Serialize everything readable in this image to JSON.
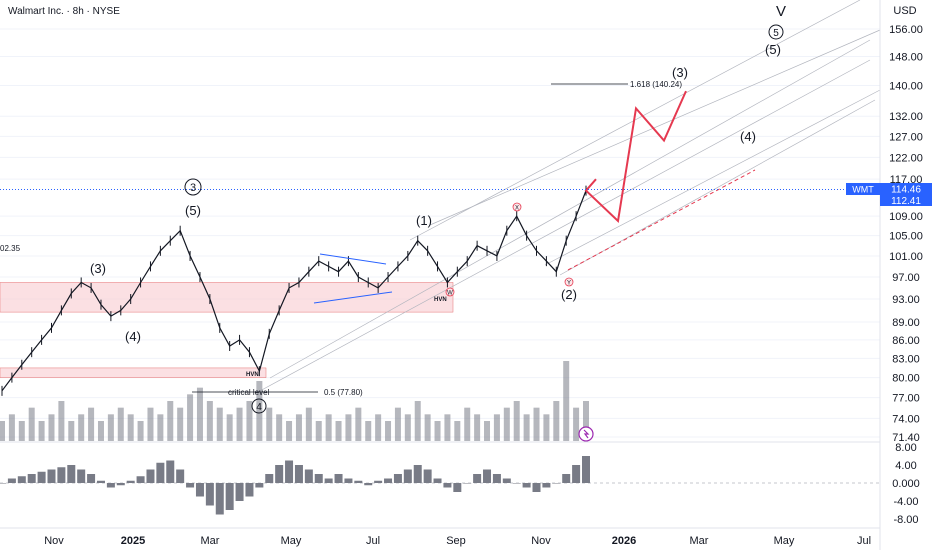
{
  "header": {
    "title": "Walmart Inc. · 8h · NYSE",
    "currency": "USD"
  },
  "colors": {
    "candle": "#131722",
    "volume": "#787b86",
    "zone": "#f7c6cc",
    "zone_border": "#e57373",
    "projection": "#e53950",
    "triangle": "#2962ff",
    "channel": "#b2b5be",
    "price_tag": "#2962ff",
    "last_line": "#2962ff"
  },
  "price_axis": {
    "ticks": [
      "156.00",
      "148.00",
      "140.00",
      "132.00",
      "127.00",
      "122.00",
      "117.00",
      "109.00",
      "105.00",
      "101.00",
      "97.00",
      "93.00",
      "89.00",
      "86.00",
      "83.00",
      "80.00",
      "77.00",
      "74.00",
      "71.40"
    ],
    "symbol_tag": "WMT",
    "last_price": "114.46",
    "prev_price": "112.41"
  },
  "oscillator_axis": {
    "ticks": [
      "8.00",
      "4.00",
      "0.000",
      "-4.00",
      "-8.00"
    ]
  },
  "time_axis": {
    "ticks": [
      "Nov",
      "2025",
      "Mar",
      "May",
      "Jul",
      "Sep",
      "Nov",
      "2026",
      "Mar",
      "May",
      "Jul"
    ]
  },
  "annotations": {
    "wave_3_circle": "3",
    "wave_5_paren": "(5)",
    "wave_3_paren_left": "(3)",
    "wave_4_paren_left": "(4)",
    "wave_4_circle": "4",
    "wave_1_paren": "(1)",
    "wave_2_paren": "(2)",
    "wave_3_proj": "(3)",
    "wave_4_proj": "(4)",
    "wave_5_circle_top": "5",
    "wave_5_paren_top": "(5)",
    "wave_v": "V",
    "fib_label": "1.618 (140.24)",
    "critical_level": "critical level",
    "fib_half": "0.5 (77.80)",
    "hvn_1": "HVN",
    "hvn_2": "HVN",
    "mark_w": "W",
    "mark_x": "X",
    "mark_y": "Y",
    "left_cut_value": "02.35"
  },
  "chart_data": [
    {
      "type": "line",
      "title": "Walmart Inc. · 8h · NYSE",
      "ylabel": "USD",
      "xlabel": "",
      "y_scale": "log",
      "ylim": [
        70,
        160
      ],
      "x_ticks": [
        "Nov",
        "2025",
        "Mar",
        "May",
        "Jul",
        "Sep",
        "Nov",
        "2026",
        "Mar",
        "May",
        "Jul"
      ],
      "series": [
        {
          "values": [
            78,
            80,
            82,
            84,
            86,
            88,
            91,
            94,
            96,
            95,
            92,
            90,
            91,
            93,
            96,
            99,
            102,
            104,
            106,
            101,
            97,
            93,
            88,
            85,
            86,
            84,
            81,
            87,
            91,
            95,
            96,
            98,
            100,
            99,
            98,
            100,
            97,
            96,
            95,
            97,
            99,
            101,
            104,
            102,
            99,
            96,
            98,
            100,
            103,
            102,
            101,
            106,
            109,
            105,
            102,
            100,
            98,
            104,
            109,
            114.46
          ]
        }
      ],
      "projection": {
        "values": [
          114.46,
          108,
          134,
          126,
          138.5
        ],
        "target": 140.24
      }
    },
    {
      "type": "bar",
      "title": "",
      "series": [
        {
          "values": [
            3,
            4,
            3,
            5,
            3,
            4,
            6,
            3,
            4,
            5,
            3,
            4,
            5,
            4,
            3,
            5,
            4,
            6,
            5,
            7,
            8,
            6,
            5,
            4,
            5,
            6,
            9,
            5,
            4,
            3,
            4,
            5,
            3,
            4,
            3,
            4,
            5,
            3,
            4,
            3,
            5,
            4,
            6,
            4,
            3,
            4,
            3,
            5,
            4,
            3,
            4,
            5,
            6,
            4,
            5,
            4,
            6,
            12,
            5,
            6
          ]
        }
      ]
    },
    {
      "type": "area",
      "title": "",
      "ylim": [
        -9,
        9
      ],
      "y_ticks": [
        "8.00",
        "4.00",
        "0.000",
        "-4.00",
        "-8.00"
      ],
      "series": [
        {
          "values": [
            0,
            1,
            1.5,
            2,
            2.5,
            3,
            3.5,
            4,
            3,
            2,
            0.5,
            -1,
            -0.5,
            0.5,
            1.5,
            3,
            4.5,
            5,
            3,
            -1,
            -3,
            -5,
            -7,
            -6,
            -4,
            -3,
            -1,
            2,
            4,
            5,
            4,
            3,
            2,
            1,
            2,
            1,
            0.5,
            -0.5,
            0.5,
            1,
            2,
            3,
            4,
            3,
            1,
            -1,
            -2,
            0,
            2,
            3,
            2,
            1,
            0,
            -1,
            -2,
            -1,
            0,
            2,
            4,
            6
          ]
        }
      ]
    }
  ]
}
